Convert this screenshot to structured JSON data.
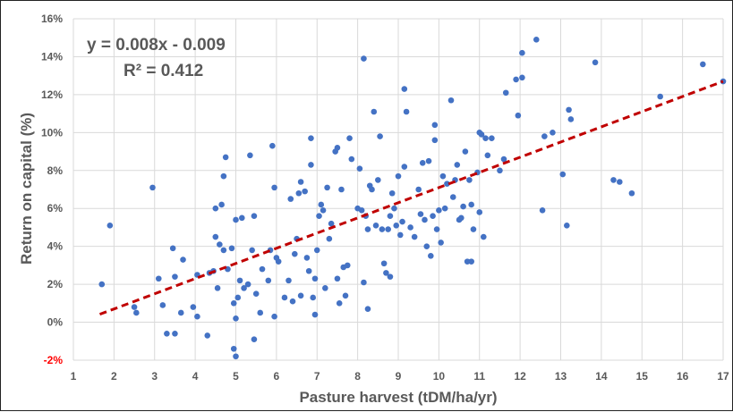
{
  "chart_data": {
    "type": "scatter",
    "xlabel": "Pasture harvest (tDM/ha/yr)",
    "ylabel": "Return on capital (%)",
    "xlim": [
      1,
      17
    ],
    "ylim": [
      -2,
      16
    ],
    "x_ticks": [
      "1",
      "2",
      "3",
      "4",
      "5",
      "6",
      "7",
      "8",
      "9",
      "10",
      "11",
      "12",
      "13",
      "14",
      "15",
      "16",
      "17"
    ],
    "y_ticks": [
      "-2%",
      "0%",
      "2%",
      "4%",
      "6%",
      "8%",
      "10%",
      "12%",
      "14%",
      "16%"
    ],
    "grid": true,
    "annotations": {
      "equation": "y = 0.008x - 0.009",
      "r_squared": "R² = 0.412"
    },
    "trendline": {
      "slope": 0.008,
      "intercept": -0.009,
      "x_range": [
        1.65,
        17.0
      ]
    },
    "colors": {
      "points": "#4472C4",
      "trendline": "#C00000",
      "grid": "#D9D9D9",
      "text": "#595959",
      "negative_tick": "#FF0000"
    },
    "points": [
      [
        1.7,
        2.0
      ],
      [
        1.9,
        5.1
      ],
      [
        2.5,
        0.8
      ],
      [
        2.55,
        0.5
      ],
      [
        2.95,
        7.1
      ],
      [
        3.1,
        2.3
      ],
      [
        3.2,
        0.9
      ],
      [
        3.3,
        -0.6
      ],
      [
        3.45,
        3.9
      ],
      [
        3.5,
        2.4
      ],
      [
        3.5,
        -0.6
      ],
      [
        3.65,
        0.5
      ],
      [
        3.7,
        3.3
      ],
      [
        3.95,
        0.8
      ],
      [
        4.05,
        0.3
      ],
      [
        4.05,
        2.5
      ],
      [
        4.3,
        -0.7
      ],
      [
        4.35,
        2.6
      ],
      [
        4.45,
        2.7
      ],
      [
        4.5,
        4.5
      ],
      [
        4.5,
        6.0
      ],
      [
        4.55,
        1.8
      ],
      [
        4.6,
        4.1
      ],
      [
        4.65,
        6.2
      ],
      [
        4.7,
        7.7
      ],
      [
        4.7,
        3.8
      ],
      [
        4.75,
        8.7
      ],
      [
        4.8,
        2.8
      ],
      [
        4.9,
        3.9
      ],
      [
        4.95,
        1.0
      ],
      [
        4.95,
        -1.4
      ],
      [
        5.0,
        -1.8
      ],
      [
        5.0,
        0.2
      ],
      [
        5.0,
        5.4
      ],
      [
        5.05,
        1.3
      ],
      [
        5.1,
        2.2
      ],
      [
        5.15,
        5.5
      ],
      [
        5.2,
        1.8
      ],
      [
        5.3,
        2.0
      ],
      [
        5.35,
        8.8
      ],
      [
        5.4,
        3.8
      ],
      [
        5.45,
        5.6
      ],
      [
        5.45,
        -0.9
      ],
      [
        5.5,
        1.5
      ],
      [
        5.6,
        0.5
      ],
      [
        5.65,
        2.8
      ],
      [
        5.8,
        2.2
      ],
      [
        5.85,
        3.8
      ],
      [
        5.9,
        9.3
      ],
      [
        5.95,
        7.1
      ],
      [
        5.95,
        0.3
      ],
      [
        6.0,
        3.4
      ],
      [
        6.05,
        3.2
      ],
      [
        6.2,
        1.3
      ],
      [
        6.3,
        2.2
      ],
      [
        6.35,
        6.5
      ],
      [
        6.4,
        1.1
      ],
      [
        6.45,
        3.6
      ],
      [
        6.5,
        4.4
      ],
      [
        6.55,
        6.8
      ],
      [
        6.6,
        7.4
      ],
      [
        6.6,
        1.4
      ],
      [
        6.7,
        6.9
      ],
      [
        6.75,
        3.4
      ],
      [
        6.8,
        2.7
      ],
      [
        6.85,
        9.7
      ],
      [
        6.85,
        8.3
      ],
      [
        6.9,
        1.3
      ],
      [
        6.95,
        2.3
      ],
      [
        6.95,
        0.4
      ],
      [
        7.0,
        3.8
      ],
      [
        7.05,
        5.6
      ],
      [
        7.1,
        6.2
      ],
      [
        7.15,
        5.9
      ],
      [
        7.2,
        1.8
      ],
      [
        7.25,
        7.1
      ],
      [
        7.3,
        4.4
      ],
      [
        7.35,
        5.2
      ],
      [
        7.45,
        9.0
      ],
      [
        7.5,
        9.2
      ],
      [
        7.5,
        2.3
      ],
      [
        7.55,
        1.0
      ],
      [
        7.6,
        7.0
      ],
      [
        7.65,
        2.9
      ],
      [
        7.7,
        1.4
      ],
      [
        7.75,
        3.0
      ],
      [
        7.8,
        9.7
      ],
      [
        7.85,
        8.6
      ],
      [
        8.0,
        6.0
      ],
      [
        8.05,
        8.1
      ],
      [
        8.1,
        5.9
      ],
      [
        8.15,
        13.9
      ],
      [
        8.15,
        2.1
      ],
      [
        8.2,
        5.6
      ],
      [
        8.25,
        4.9
      ],
      [
        8.25,
        0.7
      ],
      [
        8.3,
        7.2
      ],
      [
        8.35,
        7.0
      ],
      [
        8.4,
        11.1
      ],
      [
        8.45,
        5.1
      ],
      [
        8.5,
        7.5
      ],
      [
        8.55,
        9.8
      ],
      [
        8.6,
        4.9
      ],
      [
        8.65,
        3.1
      ],
      [
        8.7,
        2.6
      ],
      [
        8.75,
        4.9
      ],
      [
        8.8,
        5.6
      ],
      [
        8.8,
        2.4
      ],
      [
        8.85,
        6.8
      ],
      [
        8.9,
        6.0
      ],
      [
        8.95,
        5.1
      ],
      [
        9.0,
        7.7
      ],
      [
        9.05,
        4.6
      ],
      [
        9.1,
        5.3
      ],
      [
        9.15,
        8.2
      ],
      [
        9.15,
        12.3
      ],
      [
        9.2,
        11.1
      ],
      [
        9.3,
        5.0
      ],
      [
        9.4,
        4.5
      ],
      [
        9.5,
        7.0
      ],
      [
        9.55,
        5.7
      ],
      [
        9.6,
        8.4
      ],
      [
        9.65,
        5.4
      ],
      [
        9.7,
        4.0
      ],
      [
        9.75,
        8.5
      ],
      [
        9.8,
        3.5
      ],
      [
        9.85,
        5.6
      ],
      [
        9.9,
        10.4
      ],
      [
        9.9,
        9.6
      ],
      [
        9.95,
        4.9
      ],
      [
        10.0,
        5.9
      ],
      [
        10.05,
        4.2
      ],
      [
        10.1,
        7.7
      ],
      [
        10.15,
        6.0
      ],
      [
        10.2,
        7.3
      ],
      [
        10.3,
        11.7
      ],
      [
        10.35,
        6.6
      ],
      [
        10.4,
        7.5
      ],
      [
        10.45,
        8.3
      ],
      [
        10.5,
        5.4
      ],
      [
        10.55,
        5.5
      ],
      [
        10.6,
        6.1
      ],
      [
        10.65,
        9.0
      ],
      [
        10.7,
        3.2
      ],
      [
        10.75,
        7.5
      ],
      [
        10.8,
        3.2
      ],
      [
        10.8,
        6.2
      ],
      [
        10.85,
        4.9
      ],
      [
        10.95,
        7.9
      ],
      [
        11.0,
        10.0
      ],
      [
        11.0,
        5.8
      ],
      [
        11.05,
        9.9
      ],
      [
        11.1,
        4.5
      ],
      [
        11.15,
        9.7
      ],
      [
        11.2,
        8.8
      ],
      [
        11.3,
        9.7
      ],
      [
        11.5,
        8.0
      ],
      [
        11.6,
        8.6
      ],
      [
        11.65,
        12.1
      ],
      [
        11.9,
        12.8
      ],
      [
        11.95,
        10.9
      ],
      [
        12.05,
        14.2
      ],
      [
        12.05,
        12.9
      ],
      [
        12.4,
        14.9
      ],
      [
        12.55,
        5.9
      ],
      [
        12.6,
        9.8
      ],
      [
        12.8,
        10.0
      ],
      [
        13.05,
        7.8
      ],
      [
        13.15,
        5.1
      ],
      [
        13.2,
        11.2
      ],
      [
        13.25,
        10.7
      ],
      [
        13.85,
        13.7
      ],
      [
        14.3,
        7.5
      ],
      [
        14.45,
        7.4
      ],
      [
        14.75,
        6.8
      ],
      [
        15.45,
        11.9
      ],
      [
        16.5,
        13.6
      ],
      [
        17.0,
        12.7
      ]
    ]
  }
}
